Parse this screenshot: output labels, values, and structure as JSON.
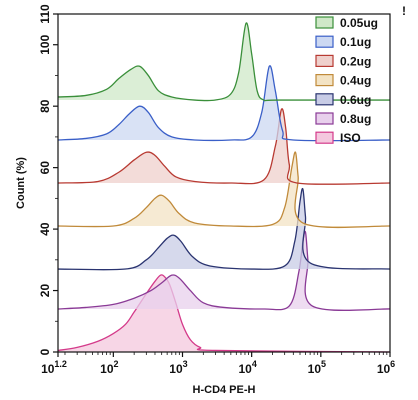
{
  "corner_mark": "!",
  "chart_data": {
    "type": "area",
    "title": "",
    "xlabel": "H-CD4 PE-H",
    "ylabel": "Count  (%)",
    "x_scale": "log",
    "xlim": [
      15.85,
      1000000
    ],
    "ylim": [
      0,
      110
    ],
    "x_ticks": [
      {
        "value": 15.85,
        "base": "10",
        "exp": "1.2"
      },
      {
        "value": 100,
        "base": "10",
        "exp": "2"
      },
      {
        "value": 1000,
        "base": "10",
        "exp": "3"
      },
      {
        "value": 10000,
        "base": "10",
        "exp": "4"
      },
      {
        "value": 100000,
        "base": "10",
        "exp": "5"
      },
      {
        "value": 1000000,
        "base": "10",
        "exp": "6"
      }
    ],
    "y_ticks": [
      "0",
      "20",
      "40",
      "60",
      "80",
      "100",
      "110"
    ],
    "legend_position": "top-right",
    "series": [
      {
        "name": "0.05ug",
        "color": "#3a8f3a",
        "fill": "#cfe8c8",
        "baseline": 82,
        "x": [
          15.85,
          40,
          80,
          120,
          180,
          240,
          320,
          450,
          700,
          1500,
          3000,
          5000,
          6500,
          8300,
          10000,
          12000,
          15000,
          25000,
          1000000
        ],
        "y": [
          83,
          83.5,
          85.5,
          89,
          92,
          93,
          90,
          85,
          83,
          82,
          82,
          84,
          91,
          107,
          97,
          85,
          82,
          82,
          82
        ]
      },
      {
        "name": "0.1ug",
        "color": "#3a5fc8",
        "fill": "#ccd8f2",
        "baseline": 69,
        "x": [
          15.85,
          40,
          80,
          120,
          170,
          240,
          320,
          450,
          700,
          1500,
          5000,
          10000,
          14000,
          18000,
          22000,
          28000,
          40000,
          1000000
        ],
        "y": [
          69,
          69.5,
          71,
          74,
          77.5,
          80,
          78,
          73,
          70,
          69,
          69,
          70,
          78,
          93,
          85,
          72,
          69,
          69
        ]
      },
      {
        "name": "0.2ug",
        "color": "#b83a32",
        "fill": "#efd0cc",
        "baseline": 55,
        "x": [
          15.85,
          60,
          120,
          200,
          300,
          400,
          550,
          800,
          1500,
          5000,
          15000,
          22000,
          27000,
          31000,
          35000,
          45000,
          1000000
        ],
        "y": [
          55,
          55.5,
          58.5,
          62.5,
          65,
          64,
          60.5,
          57,
          55.5,
          55,
          56,
          67,
          79,
          73,
          61,
          55,
          55
        ]
      },
      {
        "name": "0.4ug",
        "color": "#c08a3a",
        "fill": "#f3e3c4",
        "baseline": 41,
        "x": [
          15.85,
          100,
          200,
          300,
          400,
          500,
          650,
          900,
          1500,
          5000,
          20000,
          30000,
          38000,
          43000,
          47000,
          55000,
          1000000
        ],
        "y": [
          41,
          41,
          43.5,
          47,
          50,
          51,
          49,
          45,
          42,
          41,
          41.5,
          47,
          60,
          65,
          57,
          42,
          41
        ]
      },
      {
        "name": "0.6ug",
        "color": "#2a3470",
        "fill": "#c8cce6",
        "baseline": 27,
        "x": [
          15.85,
          150,
          300,
          450,
          600,
          750,
          950,
          1400,
          2500,
          10000,
          30000,
          42000,
          50000,
          55000,
          60000,
          70000,
          1000000
        ],
        "y": [
          27,
          27,
          30,
          34,
          37,
          38,
          36,
          31,
          28,
          27,
          28,
          36,
          49,
          53,
          44,
          29,
          27
        ]
      },
      {
        "name": "0.8ug",
        "color": "#8a3a96",
        "fill": "#e8d0ec",
        "baseline": 14,
        "x": [
          15.85,
          40,
          100,
          200,
          350,
          500,
          700,
          900,
          1300,
          2000,
          4000,
          15000,
          35000,
          48000,
          55000,
          60000,
          65000,
          75000,
          1000000
        ],
        "y": [
          14,
          14.5,
          15.5,
          17.5,
          20,
          22.5,
          25,
          24,
          20,
          16,
          14.5,
          14,
          15,
          26,
          36,
          39,
          30,
          15,
          14
        ]
      },
      {
        "name": "ISO",
        "color": "#d43a8a",
        "fill": "#f4c8de",
        "baseline": 0,
        "x": [
          15.85,
          30,
          60,
          100,
          150,
          200,
          300,
          400,
          480,
          550,
          650,
          800,
          1000,
          1300,
          1800,
          3000,
          1000000
        ],
        "y": [
          0.5,
          1.5,
          3.5,
          6,
          9,
          13,
          19,
          23,
          25,
          24.5,
          22,
          16,
          9,
          4,
          1.5,
          0.5,
          0
        ]
      }
    ]
  }
}
